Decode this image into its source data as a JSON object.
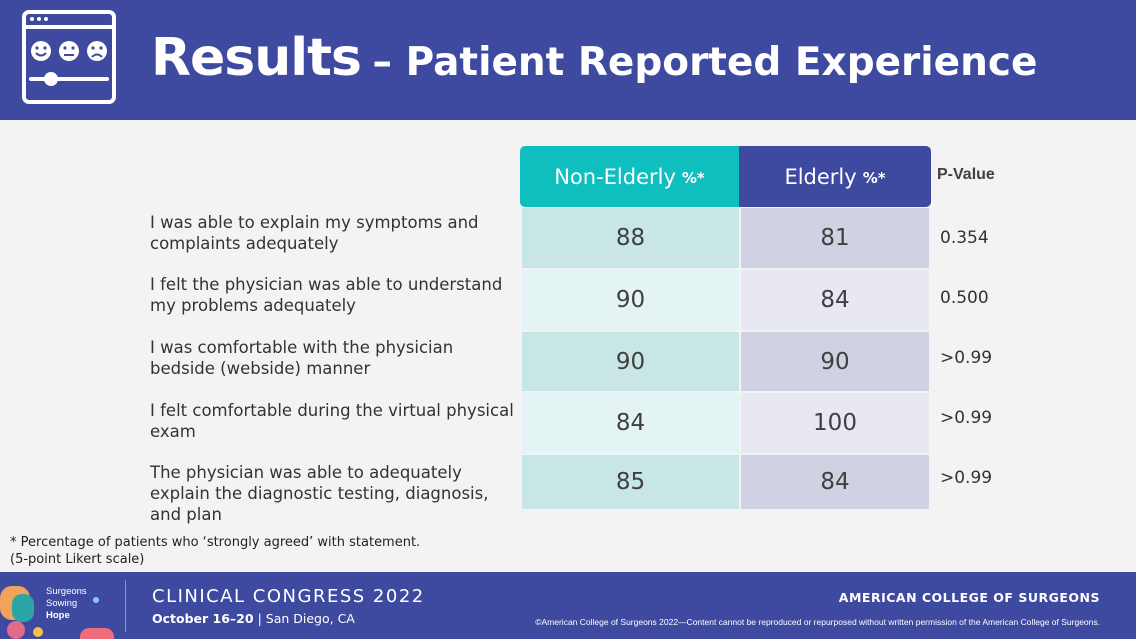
{
  "header": {
    "title_main": "Results",
    "title_sub": "– Patient Reported Experience",
    "icon": "survey-faces-slider-icon"
  },
  "table": {
    "columns": {
      "non_elderly": {
        "label": "Non-Elderly",
        "unit": "%*"
      },
      "elderly": {
        "label": "Elderly",
        "unit": "%*"
      },
      "p_value": {
        "label": "P-Value"
      }
    },
    "rows": [
      {
        "statement": "I was able to explain my symptoms and complaints adequately",
        "non_elderly": "88",
        "elderly": "81",
        "p_value": "0.354"
      },
      {
        "statement": "I felt the physician was able to understand my problems adequately",
        "non_elderly": "90",
        "elderly": "84",
        "p_value": "0.500"
      },
      {
        "statement": "I was comfortable with the physician bedside (webside) manner",
        "non_elderly": "90",
        "elderly": "90",
        "p_value": ">0.99"
      },
      {
        "statement": "I felt comfortable during the virtual physical exam",
        "non_elderly": "84",
        "elderly": "100",
        "p_value": ">0.99"
      },
      {
        "statement": "The physician was able to adequately explain the diagnostic testing, diagnosis, and plan",
        "non_elderly": "85",
        "elderly": "84",
        "p_value": ">0.99"
      }
    ]
  },
  "footnote": {
    "line1": "* Percentage of patients who ‘strongly agreed’ with statement.",
    "line2": "(5-point Likert scale)"
  },
  "footer": {
    "tagline": [
      "Surgeons",
      "Sowing",
      "Hope"
    ],
    "conference": "CLINICAL CONGRESS 2022",
    "dates": "October 16–20",
    "location": "| San Diego, CA",
    "organization": "AMERICAN COLLEGE OF SURGEONS",
    "copyright": "©American College of Surgeons 2022—Content cannot be reproduced or repurposed without written permission of the American College of Surgeons."
  },
  "colors": {
    "brand_blue": "#3d4aa0",
    "teal": "#0fbfc0",
    "teal_cell_dark": "#c8e6e6",
    "teal_cell_light": "#e4f3f3",
    "blue_cell_dark": "#d0d2e3",
    "blue_cell_light": "#e7e8f2"
  }
}
